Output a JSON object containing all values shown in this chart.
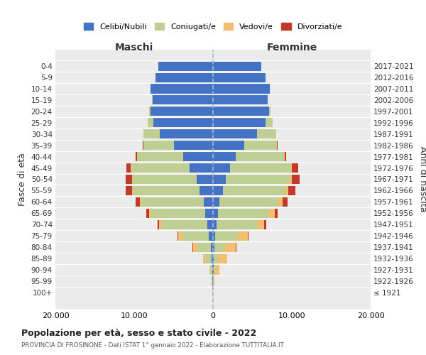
{
  "age_groups": [
    "100+",
    "95-99",
    "90-94",
    "85-89",
    "80-84",
    "75-79",
    "70-74",
    "65-69",
    "60-64",
    "55-59",
    "50-54",
    "45-49",
    "40-44",
    "35-39",
    "30-34",
    "25-29",
    "20-24",
    "15-19",
    "10-14",
    "5-9",
    "0-4"
  ],
  "birth_years": [
    "≤ 1921",
    "1922-1926",
    "1927-1931",
    "1932-1936",
    "1937-1941",
    "1942-1946",
    "1947-1951",
    "1952-1956",
    "1957-1961",
    "1962-1966",
    "1967-1971",
    "1972-1976",
    "1977-1981",
    "1982-1986",
    "1987-1991",
    "1992-1996",
    "1997-2001",
    "2002-2006",
    "2007-2011",
    "2012-2016",
    "2017-2021"
  ],
  "colors": {
    "celibe": "#4472C4",
    "coniugato": "#BFCE93",
    "vedovo": "#F0C070",
    "divorziato": "#C0392B"
  },
  "males": {
    "celibe": [
      30,
      70,
      120,
      160,
      300,
      500,
      750,
      950,
      1200,
      1700,
      2100,
      3000,
      3800,
      5000,
      6800,
      7600,
      7900,
      7700,
      7900,
      7300,
      6900
    ],
    "coniugato": [
      15,
      70,
      220,
      700,
      1700,
      3400,
      5700,
      6900,
      7900,
      8400,
      8100,
      7400,
      5800,
      3800,
      2000,
      700,
      180,
      25,
      3,
      1,
      0
    ],
    "vedovo": [
      4,
      25,
      130,
      380,
      550,
      480,
      380,
      280,
      190,
      140,
      90,
      55,
      25,
      15,
      8,
      4,
      2,
      0,
      0,
      0,
      0
    ],
    "divorziato": [
      2,
      4,
      8,
      18,
      45,
      90,
      180,
      320,
      550,
      850,
      780,
      580,
      180,
      90,
      40,
      15,
      4,
      1,
      0,
      0,
      0
    ]
  },
  "females": {
    "nubile": [
      15,
      35,
      70,
      110,
      170,
      270,
      450,
      650,
      850,
      1250,
      1650,
      2200,
      2900,
      4000,
      5600,
      6700,
      7100,
      6900,
      7200,
      6700,
      6100
    ],
    "coniugata": [
      8,
      40,
      160,
      500,
      1400,
      2900,
      5100,
      6400,
      7400,
      7900,
      8100,
      7700,
      6100,
      4100,
      2400,
      850,
      230,
      35,
      3,
      1,
      0
    ],
    "vedova": [
      15,
      130,
      550,
      1150,
      1350,
      1250,
      950,
      750,
      580,
      380,
      230,
      140,
      55,
      25,
      12,
      6,
      2,
      0,
      0,
      0,
      0
    ],
    "divorziata": [
      1,
      4,
      12,
      28,
      55,
      110,
      230,
      380,
      620,
      950,
      980,
      780,
      240,
      95,
      45,
      18,
      4,
      1,
      0,
      0,
      0
    ]
  },
  "xlim": 20000,
  "title": "Popolazione per età, sesso e stato civile - 2022",
  "subtitle": "PROVINCIA DI FROSINONE - Dati ISTAT 1° gennaio 2022 - Elaborazione TUTTITALIA.IT",
  "ylabel_left": "Fasce di età",
  "ylabel_right": "Anni di nascita"
}
